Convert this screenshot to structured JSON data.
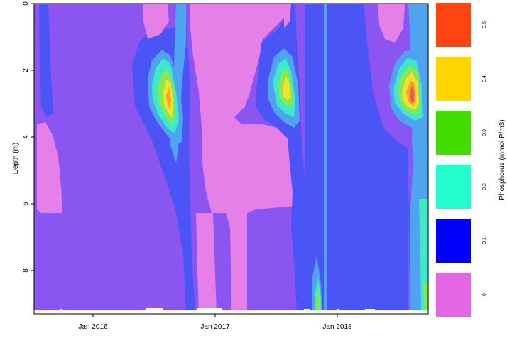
{
  "chart_data": {
    "type": "heatmap",
    "title": "",
    "xlabel": "",
    "ylabel": "Depth (m)",
    "x_ticks": [
      "Jan 2016",
      "Jan 2017",
      "Jan 2018"
    ],
    "y_ticks": [
      "0",
      "2",
      "4",
      "6",
      "8"
    ],
    "ylim": [
      9.3,
      0
    ],
    "grid": false,
    "colorbar": {
      "title": "Phosphorus (mmol P/m3)",
      "levels": [
        {
          "label": "0",
          "color": "#E466E4"
        },
        {
          "label": "0.1",
          "color": "#0000FF"
        },
        {
          "label": "0.2",
          "color": "#22FFCC"
        },
        {
          "label": "0.3",
          "color": "#44DD00"
        },
        {
          "label": "0.4",
          "color": "#FFD500"
        },
        {
          "label": "0.5",
          "color": "#FF4411"
        }
      ]
    },
    "palette": {
      "pink": "#E480E8",
      "violet": "#8A55F0",
      "blue": "#4B55F5",
      "lightblue": "#4FA4F2",
      "teal": "#3FE8C6",
      "green": "#8BE84A",
      "yellow": "#F2E035",
      "orange": "#F5A623",
      "red": "#F2555A"
    }
  }
}
